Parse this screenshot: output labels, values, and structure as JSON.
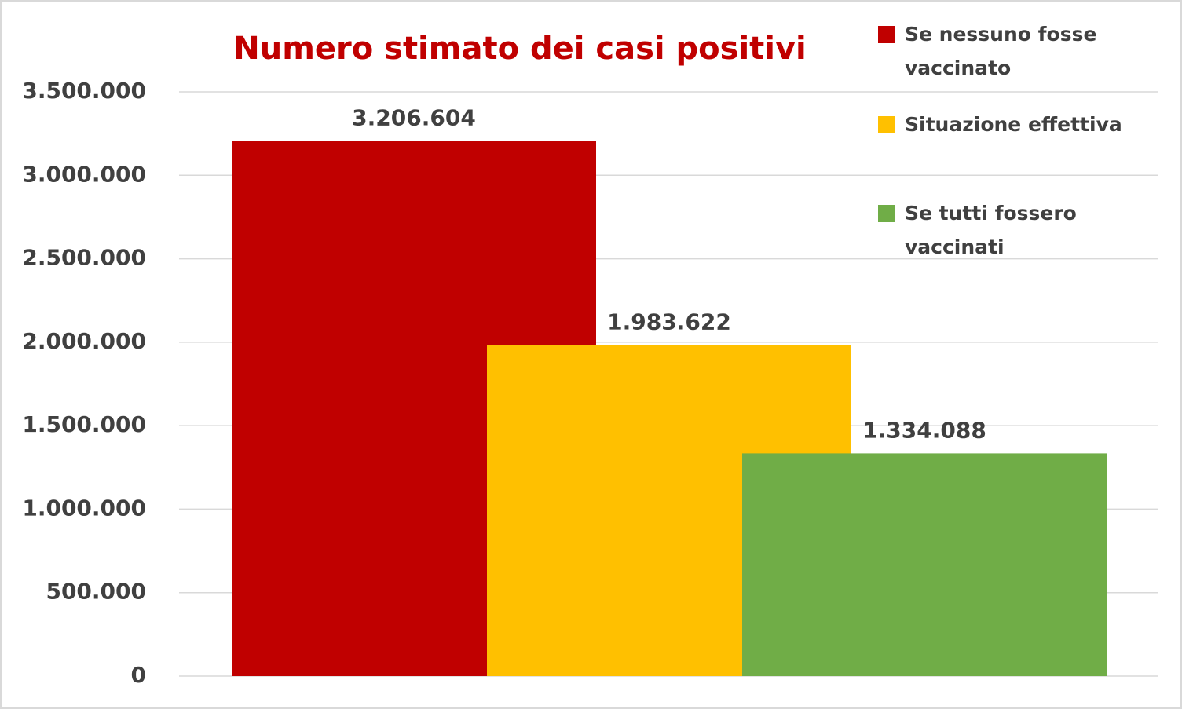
{
  "chart_data": {
    "type": "bar",
    "title": "Numero stimato dei casi positivi",
    "series": [
      {
        "name": "Se nessuno fosse vaccinato",
        "color": "#c00000",
        "values": [
          3206604
        ],
        "value_labels": [
          "3.206.604"
        ]
      },
      {
        "name": "Situazione effettiva",
        "color": "#ffc000",
        "values": [
          1983622
        ],
        "value_labels": [
          "1.983.622"
        ]
      },
      {
        "name": "Se tutti fossero vaccinati",
        "color": "#70ad47",
        "values": [
          1334088
        ],
        "value_labels": [
          "1.334.088"
        ]
      }
    ],
    "ylim": [
      0,
      3500000
    ],
    "yticks": [
      0,
      {
        "value": 500000,
        "label": "500.000"
      },
      {
        "value": 1000000,
        "label": "1.000.000"
      },
      {
        "value": 1500000,
        "label": "1.500.000"
      },
      {
        "value": 2000000,
        "label": "2.000.000"
      },
      {
        "value": 2500000,
        "label": "2.500.000"
      },
      {
        "value": 3000000,
        "label": "3.000.000"
      },
      {
        "value": 3500000,
        "label": "3.500.000"
      }
    ],
    "grid": true
  }
}
